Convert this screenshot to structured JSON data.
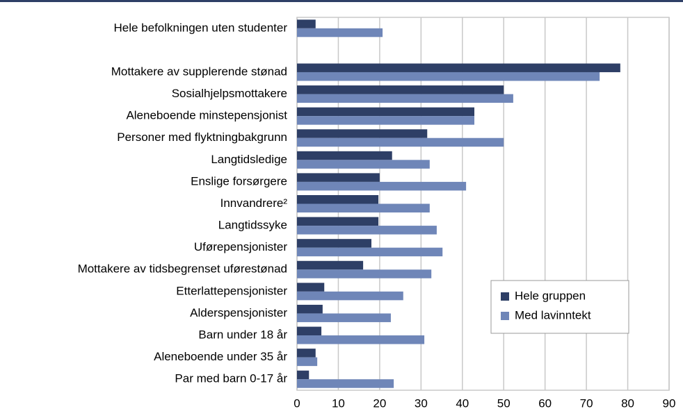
{
  "chart_data": {
    "type": "hbar",
    "categories": [
      "Hele befolkningen uten studenter",
      null,
      "Mottakere av supplerende stønad",
      "Sosialhjelpsmottakere",
      "Aleneboende minstepensjonist",
      "Personer med flyktningbakgrunn",
      "Langtidsledige",
      "Enslige forsørgere",
      "Innvandrere²",
      "Langtidssyke",
      "Uførepensjonister",
      "Mottakere av tidsbegrenset uførestønad",
      "Etterlattepensjonister",
      "Alderspensjonister",
      "Barn under 18 år",
      "Aleneboende under 35 år",
      "Par med barn 0-17 år"
    ],
    "series": [
      {
        "name": "Hele gruppen",
        "color": "#2e3f66",
        "values": [
          4.5,
          null,
          78.2,
          50,
          42.9,
          31.5,
          23,
          20,
          19.7,
          19.7,
          18,
          16,
          6.6,
          6.2,
          5.9,
          4.5,
          2.9
        ]
      },
      {
        "name": "Med lavinntekt",
        "color": "#6f86b8",
        "values": [
          20.7,
          null,
          73.2,
          52.3,
          42.9,
          50,
          32.1,
          40.9,
          32.1,
          33.8,
          35.2,
          32.5,
          25.7,
          22.7,
          30.8,
          4.9,
          23.4
        ]
      }
    ],
    "xlim": [
      0,
      90
    ],
    "xticks": [
      0,
      10,
      20,
      30,
      40,
      50,
      60,
      70,
      80,
      90
    ],
    "grid": true,
    "legend": "lower right"
  }
}
